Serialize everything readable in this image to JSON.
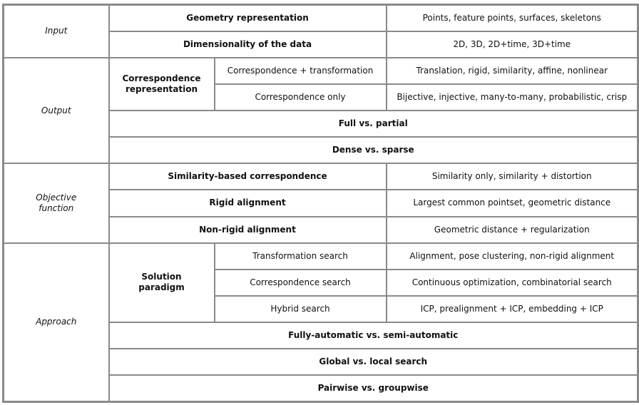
{
  "input": {
    "category": "Input",
    "geometry_label": "Geometry representation",
    "geometry_value": "Points, feature points, surfaces, skeletons",
    "dimensionality_label": "Dimensionality of the data",
    "dimensionality_value": "2D, 3D, 2D+time, 3D+time"
  },
  "output": {
    "category": "Output",
    "corr_rep_label_line1": "Correspondence",
    "corr_rep_label_line2": "representation",
    "corr_transform_label": "Correspondence + transformation",
    "corr_transform_value": "Translation, rigid, similarity, affine, nonlinear",
    "corr_only_label": "Correspondence only",
    "corr_only_value": "Bijective, injective, many-to-many, probabilistic, crisp",
    "full_partial": "Full vs. partial",
    "dense_sparse": "Dense vs. sparse"
  },
  "objective": {
    "category_line1": "Objective",
    "category_line2": "function",
    "similarity_label": "Similarity-based correspondence",
    "similarity_value": "Similarity only, similarity + distortion",
    "rigid_label": "Rigid alignment",
    "rigid_value": "Largest common pointset, geometric distance",
    "nonrigid_label": "Non-rigid alignment",
    "nonrigid_value": "Geometric distance + regularization"
  },
  "approach": {
    "category": "Approach",
    "paradigm_line1": "Solution",
    "paradigm_line2": "paradigm",
    "transform_search_label": "Transformation search",
    "transform_search_value": "Alignment, pose clustering, non-rigid alignment",
    "corr_search_label": "Correspondence search",
    "corr_search_value": "Continuous optimization, combinatorial search",
    "hybrid_label": "Hybrid search",
    "hybrid_value": "ICP, prealignment + ICP, embedding + ICP",
    "automatic": "Fully-automatic vs. semi-automatic",
    "global_local": "Global vs. local search",
    "pairwise_groupwise": "Pairwise vs. groupwise"
  }
}
